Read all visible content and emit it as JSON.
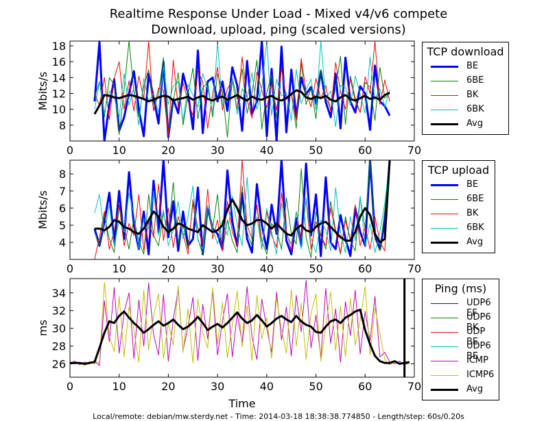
{
  "chart_title": "Realtime Response Under Load - Mixed v4/v6 compete",
  "chart_subtitle": "Download, upload, ping (scaled versions)",
  "footer": "Local/remote: debian/mw.sterdy.net - Time: 2014-03-18 18:38:38.774850 - Length/step: 60s/0.20s",
  "colors": {
    "BE": "#0000ff",
    "6BE": "#008000",
    "BK": "#ff0000",
    "6BK": "#00bfbf",
    "Avg": "#000000",
    "ICMP": "#bf00bf",
    "ICMP6": "#bfbf00"
  },
  "chart_data": [
    {
      "type": "line",
      "panel": "download",
      "ylabel": "Mbits/s",
      "xlabel": "",
      "xlim": [
        0,
        70
      ],
      "ylim": [
        6,
        18.6
      ],
      "xticks": [
        0,
        10,
        20,
        30,
        40,
        50,
        60,
        70
      ],
      "yticks": [
        8,
        10,
        12,
        14,
        16,
        18
      ],
      "legend_title": "TCP download",
      "legend_position": "right",
      "x_start": 5,
      "x_step": 1,
      "series": [
        {
          "name": "BE",
          "color": "#0000ff",
          "width": 3,
          "values": [
            11,
            18.5,
            6,
            10.6,
            13.8,
            7.3,
            9,
            12,
            14.8,
            10,
            6.6,
            14.5,
            11.5,
            8.2,
            16,
            6.5,
            11.3,
            9.5,
            14.5,
            12,
            7.5,
            17.4,
            7,
            13.5,
            14,
            11,
            13.5,
            9.8,
            15.3,
            13,
            7.3,
            16.1,
            9.4,
            11,
            18.6,
            6.6,
            15.1,
            6,
            17.9,
            7.1,
            15,
            9,
            14,
            11.9,
            12.8,
            10.7,
            14.8,
            10.9,
            9,
            14.5,
            7.6,
            16.5,
            11,
            9.6,
            12.9,
            12,
            7.4,
            15.5,
            11,
            10.4,
            9.2
          ]
        },
        {
          "name": "6BE",
          "color": "#008000",
          "width": 1,
          "values": [
            11.5,
            13.5,
            9,
            14,
            13.1,
            6.8,
            12.5,
            18.6,
            12.2,
            9,
            12.9,
            15,
            9.8,
            12,
            16.5,
            6.6,
            11,
            14.6,
            8,
            11.9,
            15.2,
            8.8,
            12.7,
            13.4,
            9,
            14.5,
            12.2,
            6.5,
            13.9,
            11.3,
            15.1,
            9.5,
            12,
            16.2,
            7.5,
            12.1,
            14.4,
            8.9,
            15.2,
            11.3,
            12,
            7.6,
            15.9,
            10.6,
            12.7,
            8.8,
            15,
            11.5,
            10,
            12.6,
            16.7,
            8.1,
            14.2,
            11.4,
            9.6,
            13.4,
            12.8,
            8.6,
            15.3,
            11.4,
            12
          ]
        },
        {
          "name": "BK",
          "color": "#ff0000",
          "width": 1,
          "values": [
            12,
            10.5,
            14,
            8.7,
            13.9,
            16,
            10,
            13.6,
            9.8,
            14.2,
            11.3,
            18.6,
            9.8,
            12.7,
            12.4,
            6.6,
            16.2,
            10.2,
            13.3,
            11,
            9.2,
            14.8,
            13.5,
            7.6,
            12,
            15.3,
            9.9,
            12.6,
            13.6,
            10,
            16.6,
            11.2,
            8.9,
            14.7,
            12.4,
            10.2,
            13.2,
            9.9,
            15.2,
            11.4,
            12.1,
            8.6,
            16.4,
            12.3,
            10.3,
            13.9,
            11.3,
            13,
            9.7,
            15.9,
            12.3,
            10,
            13.8,
            11,
            9.6,
            14.1,
            12,
            18.6,
            10.6,
            13.7,
            11
          ]
        },
        {
          "name": "6BK",
          "color": "#00bfbf",
          "width": 1,
          "values": [
            10,
            13.4,
            9.6,
            12.3,
            11.5,
            9,
            14.5,
            10.5,
            12.7,
            8,
            13.9,
            11,
            12,
            9.5,
            15.4,
            10.6,
            12.9,
            13.5,
            8.5,
            13.1,
            11.8,
            10.3,
            14.5,
            12.6,
            9.6,
            18.4,
            10.5,
            11.6,
            13.8,
            9.4,
            12.6,
            11.4,
            14.6,
            10,
            12.7,
            18.6,
            9.2,
            13.8,
            11.7,
            12.1,
            8.6,
            15,
            10.7,
            12.5,
            13.8,
            9.9,
            18.6,
            11.3,
            12.3,
            7.8,
            13,
            12.8,
            10.5,
            14.2,
            11.9,
            9.5,
            16.6,
            11.2,
            12.6,
            10.3,
            12.5
          ]
        },
        {
          "name": "Avg",
          "color": "#000000",
          "width": 3,
          "values": [
            9.4,
            10.5,
            11.8,
            11.7,
            11.5,
            11.4,
            11.6,
            11.8,
            11.7,
            11.5,
            11.3,
            11,
            11.2,
            11.5,
            11.7,
            11.6,
            11.1,
            11.3,
            11.4,
            11.6,
            11.2,
            11.5,
            11.7,
            11.3,
            11.1,
            11.4,
            11.6,
            11.2,
            11.5,
            11.8,
            11.4,
            11.1,
            11.6,
            11.3,
            11.2,
            11.5,
            11.7,
            11.3,
            11.1,
            11.4,
            11.9,
            12.4,
            12.2,
            11.5,
            11.3,
            11.6,
            11.4,
            11.7,
            11.2,
            11,
            11.5,
            11.8,
            11.3,
            11.1,
            11.4,
            11.7,
            11.3,
            11.5,
            11.2,
            11.8,
            12.1
          ]
        }
      ]
    },
    {
      "type": "line",
      "panel": "upload",
      "ylabel": "Mbits/s",
      "xlabel": "",
      "xlim": [
        0,
        70
      ],
      "ylim": [
        3,
        8.8
      ],
      "xticks": [
        0,
        10,
        20,
        30,
        40,
        50,
        60,
        70
      ],
      "yticks": [
        4,
        5,
        6,
        7,
        8
      ],
      "legend_title": "TCP upload",
      "legend_position": "right",
      "x_start": 5,
      "x_step": 1,
      "series": [
        {
          "name": "BE",
          "color": "#0000ff",
          "width": 3,
          "values": [
            4.8,
            3.8,
            5.2,
            6.9,
            4,
            7,
            4.2,
            8.1,
            5,
            3.6,
            5.8,
            3.3,
            7.6,
            4.6,
            8.8,
            4.3,
            6.4,
            3.5,
            5.8,
            3.8,
            4.2,
            7.2,
            3.3,
            6,
            4.8,
            4.5,
            3.6,
            8.2,
            5.2,
            3.8,
            6.9,
            4.2,
            3.4,
            7.4,
            5,
            3.6,
            6.2,
            4.5,
            8.8,
            4.1,
            3.3,
            5.4,
            3.8,
            8.6,
            4.4,
            6.8,
            3.2,
            7.8,
            4,
            3.6,
            5.6,
            4.2,
            3.2,
            6,
            4.6,
            3.8,
            8.8,
            4.4,
            3.6,
            5.2,
            8.8
          ]
        },
        {
          "name": "6BE",
          "color": "#008000",
          "width": 1,
          "values": [
            4.6,
            3.8,
            5.6,
            4.2,
            3.4,
            6.1,
            4.9,
            3.6,
            5.4,
            4.1,
            3.3,
            6.8,
            4.4,
            3.8,
            5.7,
            4.6,
            7.5,
            3.9,
            5,
            3.6,
            6.3,
            4.2,
            3.3,
            5.8,
            4.8,
            6.8,
            3.5,
            5.3,
            4.1,
            3.4,
            7.3,
            4.6,
            3.8,
            6.2,
            4.1,
            3.3,
            5.1,
            4.7,
            3.6,
            6.6,
            4.5,
            3.9,
            8.3,
            4.3,
            3.1,
            5.8,
            4.4,
            3.6,
            6.4,
            4.7,
            3.3,
            5.5,
            4.1,
            3.5,
            6.6,
            4.8,
            8.8,
            4.2,
            3.5,
            5.9,
            8.8
          ]
        },
        {
          "name": "BK",
          "color": "#ff0000",
          "width": 1,
          "values": [
            3,
            4.3,
            5.8,
            3.6,
            4.7,
            6.2,
            3.8,
            5.1,
            4.4,
            6.8,
            3.5,
            5.2,
            4.3,
            7.4,
            4.1,
            6,
            3.7,
            5.5,
            4.5,
            3.3,
            6.5,
            4.8,
            3.9,
            7.1,
            4.2,
            5.3,
            3.5,
            6.4,
            4.6,
            3.8,
            8.8,
            5,
            4.2,
            6.2,
            3.6,
            5.8,
            4.4,
            3.7,
            6.9,
            4.7,
            3.5,
            5.8,
            4.2,
            6.5,
            3.6,
            5.2,
            4.4,
            3.8,
            6,
            4.6,
            3.4,
            5.3,
            4.1,
            6.2,
            3.8,
            4.9,
            3.6,
            5.5,
            4,
            3.5,
            8.8
          ]
        },
        {
          "name": "6BK",
          "color": "#00bfbf",
          "width": 1,
          "values": [
            5.7,
            6.8,
            4.5,
            6.2,
            3.8,
            5.3,
            4.6,
            6.9,
            5.6,
            3.6,
            5.4,
            4.8,
            7,
            4.4,
            5.9,
            3.8,
            4.7,
            6.4,
            4.2,
            5.5,
            7.3,
            4.1,
            3.6,
            6.2,
            4.8,
            3.9,
            5.3,
            4.4,
            6.7,
            5,
            3.8,
            7.8,
            4.3,
            5.5,
            3.6,
            6,
            4.6,
            3.3,
            6.3,
            4.5,
            3.9,
            5.8,
            3.6,
            6.6,
            4.2,
            3.4,
            5.3,
            4.7,
            3.5,
            7.2,
            4.6,
            3.4,
            5.5,
            4.1,
            6.7,
            3.8,
            5.1,
            3.4,
            4.6,
            6.3,
            8.8
          ]
        },
        {
          "name": "Avg",
          "color": "#000000",
          "width": 3,
          "values": [
            4.8,
            4.8,
            4.7,
            4.9,
            5.3,
            5.2,
            4.9,
            4.8,
            4.6,
            4.5,
            4.8,
            5.3,
            5.8,
            5.5,
            4.9,
            4.6,
            4.8,
            5.1,
            5,
            4.8,
            4.7,
            4.6,
            5,
            4.8,
            4.6,
            4.7,
            5,
            5.9,
            6.5,
            6,
            5.3,
            5,
            5.1,
            5.3,
            5.3,
            5.1,
            4.8,
            5.1,
            4.8,
            4.5,
            4.4,
            4.8,
            5,
            4.7,
            4.6,
            4.9,
            5.1,
            5.2,
            4.9,
            4.6,
            4.3,
            4.1,
            4.1,
            4.6,
            5.5,
            6,
            5.6,
            4.5,
            4,
            4.2,
            8.8
          ]
        }
      ]
    },
    {
      "type": "line",
      "panel": "ping",
      "ylabel": "ms",
      "xlabel": "Time",
      "xlim": [
        0,
        70
      ],
      "ylim": [
        24.5,
        35.6
      ],
      "xticks": [
        0,
        10,
        20,
        30,
        40,
        50,
        60,
        70
      ],
      "yticks": [
        26,
        28,
        30,
        32,
        34
      ],
      "legend_title": "Ping (ms)",
      "legend_position": "right",
      "x_start": 0,
      "x_step": 1,
      "series": [
        {
          "name": "UDP6 EF",
          "color": "#0000ff",
          "width": 1,
          "values": []
        },
        {
          "name": "UDP6 BK",
          "color": "#008000",
          "width": 1,
          "values": []
        },
        {
          "name": "UDP BE",
          "color": "#ff0000",
          "width": 1,
          "values": []
        },
        {
          "name": "UDP6 BE",
          "color": "#00bfbf",
          "width": 1,
          "values": []
        },
        {
          "name": "ICMP",
          "color": "#bf00bf",
          "width": 1,
          "values": [
            26.1,
            26.3,
            25.9,
            26.2,
            26,
            26.4,
            25.8,
            33.1,
            28.5,
            34.6,
            27.2,
            31.8,
            34,
            26.6,
            33.2,
            28,
            35.1,
            29.3,
            27,
            33.8,
            26.3,
            31,
            34.4,
            27.5,
            30.2,
            33.5,
            26.4,
            32.7,
            28.8,
            34.2,
            27,
            30.8,
            33.9,
            26.8,
            31.6,
            28.4,
            34.7,
            29.1,
            26.5,
            33.3,
            30,
            27.3,
            34.1,
            28.7,
            32.4,
            26.9,
            33.7,
            29.6,
            35.4,
            27.8,
            31.5,
            26.7,
            34.5,
            28.3,
            32.2,
            26.2,
            33,
            29.2,
            34.3,
            27.1,
            31.9,
            28.6,
            33.6,
            26.8,
            27.3,
            26.2,
            26,
            26.3,
            25.9,
            26.1
          ]
        },
        {
          "name": "ICMP6",
          "color": "#bfbf00",
          "width": 1,
          "values": [
            26,
            26.2,
            26.1,
            25.8,
            26.3,
            26,
            26.2,
            35.2,
            29.1,
            27.4,
            33.6,
            26.8,
            32.4,
            29.8,
            26.2,
            34.3,
            27.6,
            31.4,
            33.9,
            26.6,
            30.6,
            28.1,
            34.8,
            27.3,
            32.2,
            26.1,
            33.3,
            29.5,
            27.8,
            34.6,
            28.2,
            32.9,
            26.7,
            30.4,
            34.2,
            27.9,
            32.6,
            26.4,
            33.7,
            28.8,
            31.2,
            26.6,
            33.4,
            29.9,
            27.2,
            34.4,
            28,
            32.8,
            26.5,
            31.7,
            33.9,
            26.3,
            30.2,
            34.1,
            27.5,
            32.5,
            26.8,
            33.4,
            28.1,
            30.9,
            34.7,
            27,
            32.3,
            29.4,
            26.5,
            25.9,
            26.2,
            26,
            26.2,
            26
          ]
        },
        {
          "name": "Avg",
          "color": "#000000",
          "width": 3,
          "values": [
            26.1,
            26.1,
            26.1,
            26,
            26.1,
            26.2,
            27.8,
            29.5,
            30.8,
            30.6,
            31.4,
            31.9,
            31.2,
            30.6,
            30.1,
            29.5,
            29.9,
            30.4,
            30.8,
            30.3,
            30.6,
            31,
            30.4,
            29.9,
            30.2,
            30.7,
            31.3,
            30.6,
            29.8,
            30.2,
            30.5,
            30.1,
            30.6,
            31.2,
            31.8,
            31.1,
            30.6,
            30.9,
            31.5,
            30.9,
            30.2,
            30.6,
            31.1,
            31.4,
            31,
            30.7,
            31.4,
            30.8,
            30.4,
            30.2,
            29.6,
            29.5,
            30.2,
            30.8,
            31,
            30.6,
            31.2,
            31.5,
            31.9,
            32.1,
            29.8,
            28.2,
            26.9,
            26.3,
            26.1,
            26.1,
            26.3,
            26,
            26.1,
            26.2
          ]
        }
      ]
    }
  ]
}
